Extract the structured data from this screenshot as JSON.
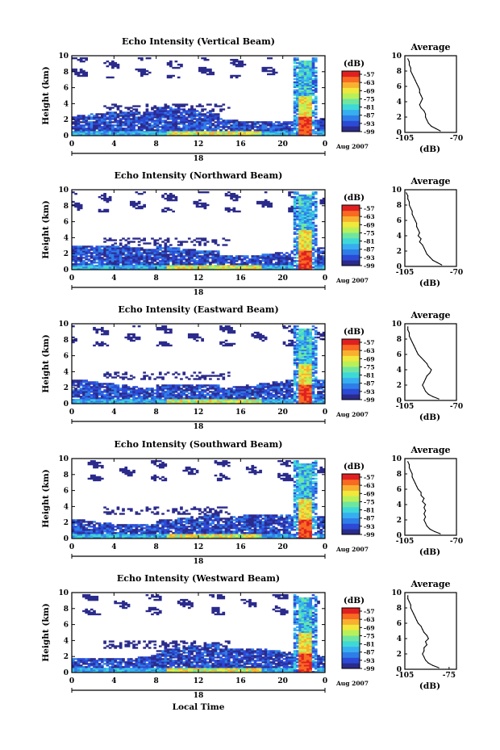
{
  "xlabel_bottom": "Local Time",
  "colors": {
    "colormap": [
      "#2b2b8c",
      "#2c4ad6",
      "#2f7ee8",
      "#37aef0",
      "#3fd8d8",
      "#6fe6a0",
      "#b8f05a",
      "#f0e83c",
      "#f8b030",
      "#f86a22",
      "#e02020"
    ],
    "axis": "#000000",
    "profile_line": "#000000"
  },
  "chart_data": [
    {
      "type": "heatmap",
      "title": "Echo Intensity (Vertical Beam)",
      "ylabel": "Height (km)",
      "x_ticks": [
        "0",
        "4",
        "8",
        "12",
        "16",
        "20",
        "0"
      ],
      "ylim": [
        0,
        10
      ],
      "y_ticks": [
        "0",
        "2",
        "4",
        "6",
        "8",
        "10"
      ],
      "date_label": "18",
      "month_label": "Aug 2007",
      "colorbar": {
        "unit": "(dB)",
        "labels": [
          "-57",
          "-63",
          "-69",
          "-75",
          "-81",
          "-87",
          "-93",
          "-99"
        ],
        "range": [
          -99,
          -57
        ]
      },
      "profile": {
        "title": "Average",
        "xlabel": "(dB)",
        "xlim": [
          -105,
          -70
        ],
        "x_ticks": [
          "-105",
          "-70"
        ],
        "ylim": [
          0,
          10
        ],
        "y_ticks": [
          "0",
          "2",
          "4",
          "6",
          "8",
          "10"
        ],
        "x": [
          -81,
          -84,
          -87,
          -89,
          -90,
          -91,
          -91,
          -92,
          -94,
          -95,
          -94,
          -93,
          -94,
          -95,
          -95,
          -96,
          -97,
          -98,
          -99,
          -100,
          -101,
          -101,
          -102,
          -102,
          -103
        ],
        "y": [
          0.2,
          0.5,
          0.8,
          1.2,
          1.6,
          2.0,
          2.4,
          2.8,
          3.2,
          3.6,
          4.0,
          4.4,
          4.8,
          5.2,
          5.6,
          6.0,
          6.4,
          6.8,
          7.2,
          7.6,
          8.0,
          8.4,
          8.8,
          9.2,
          9.6
        ]
      }
    },
    {
      "type": "heatmap",
      "title": "Echo Intensity (Northward Beam)",
      "ylabel": "Height (km)",
      "x_ticks": [
        "0",
        "4",
        "8",
        "12",
        "16",
        "20",
        "0"
      ],
      "ylim": [
        0,
        10
      ],
      "y_ticks": [
        "0",
        "2",
        "4",
        "6",
        "8",
        "10"
      ],
      "date_label": "18",
      "month_label": "Aug 2007",
      "colorbar": {
        "unit": "(dB)",
        "labels": [
          "-57",
          "-63",
          "-69",
          "-75",
          "-81",
          "-87",
          "-93",
          "-99"
        ],
        "range": [
          -99,
          -57
        ]
      },
      "profile": {
        "title": "Average",
        "xlabel": "(dB)",
        "xlim": [
          -105,
          -70
        ],
        "x_ticks": [
          "-105",
          "-70"
        ],
        "ylim": [
          0,
          10
        ],
        "y_ticks": [
          "0",
          "2",
          "4",
          "6",
          "8",
          "10"
        ],
        "x": [
          -80,
          -83,
          -86,
          -88,
          -90,
          -91,
          -92,
          -93,
          -95,
          -94,
          -96,
          -95,
          -96,
          -97,
          -97,
          -98,
          -99,
          -100,
          -100,
          -101,
          -102,
          -102,
          -103,
          -103,
          -104
        ],
        "y": [
          0.2,
          0.5,
          0.8,
          1.2,
          1.6,
          2.0,
          2.4,
          2.8,
          3.2,
          3.6,
          4.0,
          4.4,
          4.8,
          5.2,
          5.6,
          6.0,
          6.4,
          6.8,
          7.2,
          7.6,
          8.0,
          8.4,
          8.8,
          9.2,
          9.6
        ]
      }
    },
    {
      "type": "heatmap",
      "title": "Echo Intensity (Eastward Beam)",
      "ylabel": "Height (km)",
      "x_ticks": [
        "0",
        "4",
        "8",
        "12",
        "16",
        "20",
        "0"
      ],
      "ylim": [
        0,
        10
      ],
      "y_ticks": [
        "0",
        "2",
        "4",
        "6",
        "8",
        "10"
      ],
      "date_label": "18",
      "month_label": "Aug 2007",
      "colorbar": {
        "unit": "(dB)",
        "labels": [
          "-57",
          "-63",
          "-69",
          "-75",
          "-81",
          "-87",
          "-93",
          "-99"
        ],
        "range": [
          -99,
          -57
        ]
      },
      "profile": {
        "title": "Average",
        "xlabel": "(dB)",
        "xlim": [
          -105,
          -70
        ],
        "x_ticks": [
          "-105",
          "-70"
        ],
        "ylim": [
          0,
          10
        ],
        "y_ticks": [
          "0",
          "2",
          "4",
          "6",
          "8",
          "10"
        ],
        "x": [
          -82,
          -86,
          -89,
          -91,
          -92,
          -93,
          -92,
          -91,
          -90,
          -88,
          -87,
          -89,
          -90,
          -92,
          -94,
          -96,
          -97,
          -98,
          -99,
          -100,
          -101,
          -102,
          -102,
          -103,
          -103
        ],
        "y": [
          0.2,
          0.5,
          0.8,
          1.2,
          1.6,
          2.0,
          2.4,
          2.8,
          3.2,
          3.6,
          4.0,
          4.4,
          4.8,
          5.2,
          5.6,
          6.0,
          6.4,
          6.8,
          7.2,
          7.6,
          8.0,
          8.4,
          8.8,
          9.2,
          9.6
        ]
      }
    },
    {
      "type": "heatmap",
      "title": "Echo Intensity (Southward Beam)",
      "ylabel": "Height (km)",
      "x_ticks": [
        "0",
        "4",
        "8",
        "12",
        "16",
        "20",
        "0"
      ],
      "ylim": [
        0,
        10
      ],
      "y_ticks": [
        "0",
        "2",
        "4",
        "6",
        "8",
        "10"
      ],
      "date_label": "18",
      "month_label": "Aug 2007",
      "colorbar": {
        "unit": "(dB)",
        "labels": [
          "-57",
          "-63",
          "-69",
          "-75",
          "-81",
          "-87",
          "-93",
          "-99"
        ],
        "range": [
          -99,
          -57
        ]
      },
      "profile": {
        "title": "Average",
        "xlabel": "(dB)",
        "xlim": [
          -105,
          -70
        ],
        "x_ticks": [
          "-105",
          "-70"
        ],
        "ylim": [
          0,
          10
        ],
        "y_ticks": [
          "0",
          "2",
          "4",
          "6",
          "8",
          "10"
        ],
        "x": [
          -81,
          -85,
          -88,
          -90,
          -91,
          -92,
          -91,
          -92,
          -91,
          -92,
          -91,
          -93,
          -92,
          -94,
          -94,
          -96,
          -97,
          -98,
          -99,
          -100,
          -100,
          -101,
          -102,
          -102,
          -103
        ],
        "y": [
          0.2,
          0.5,
          0.8,
          1.2,
          1.6,
          2.0,
          2.4,
          2.8,
          3.2,
          3.6,
          4.0,
          4.4,
          4.8,
          5.2,
          5.6,
          6.0,
          6.4,
          6.8,
          7.2,
          7.6,
          8.0,
          8.4,
          8.8,
          9.2,
          9.6
        ]
      }
    },
    {
      "type": "heatmap",
      "title": "Echo Intensity (Westward Beam)",
      "ylabel": "Height (km)",
      "x_ticks": [
        "0",
        "4",
        "8",
        "12",
        "16",
        "20",
        "0"
      ],
      "ylim": [
        0,
        10
      ],
      "y_ticks": [
        "0",
        "2",
        "4",
        "6",
        "8",
        "10"
      ],
      "date_label": "18",
      "month_label": "Aug 2007",
      "colorbar": {
        "unit": "(dB)",
        "labels": [
          "-57",
          "-63",
          "-69",
          "-75",
          "-81",
          "-87",
          "-93",
          "-99"
        ],
        "range": [
          -99,
          -57
        ]
      },
      "profile": {
        "title": "Average",
        "xlabel": "(dB)",
        "xlim": [
          -105,
          -70
        ],
        "x_ticks": [
          "-105",
          "-75"
        ],
        "ylim": [
          0,
          10
        ],
        "y_ticks": [
          "0",
          "2",
          "4",
          "6",
          "8",
          "10"
        ],
        "x": [
          -82,
          -86,
          -89,
          -91,
          -92,
          -93,
          -92,
          -92,
          -90,
          -91,
          -89,
          -90,
          -92,
          -93,
          -94,
          -96,
          -97,
          -98,
          -99,
          -100,
          -101,
          -101,
          -102,
          -103,
          -103
        ],
        "y": [
          0.2,
          0.5,
          0.8,
          1.2,
          1.6,
          2.0,
          2.4,
          2.8,
          3.2,
          3.6,
          4.0,
          4.4,
          4.8,
          5.2,
          5.6,
          6.0,
          6.4,
          6.8,
          7.2,
          7.6,
          8.0,
          8.4,
          8.8,
          9.2,
          9.6
        ]
      }
    }
  ]
}
